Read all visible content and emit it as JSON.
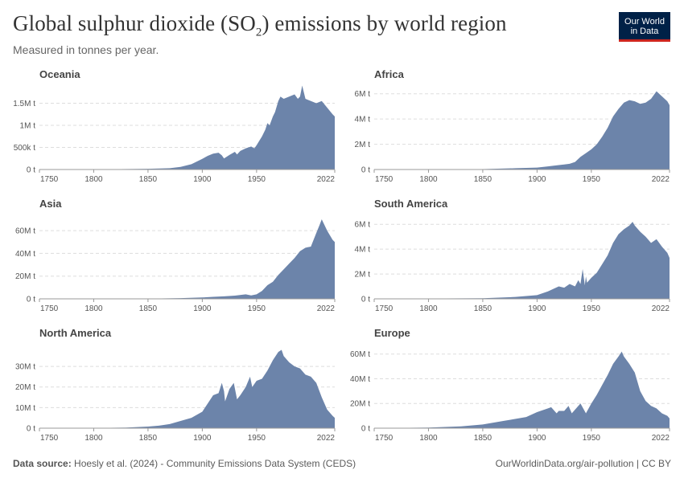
{
  "header": {
    "title_main": "Global sulphur dioxide (SO",
    "title_sub": "2",
    "title_end": ") emissions by world region",
    "subtitle": "Measured in tonnes per year.",
    "logo_line1": "Our World",
    "logo_line2": "in Data"
  },
  "footer": {
    "source_label": "Data source:",
    "source_text": "Hoesly et al. (2024) - Community Emissions Data System (CEDS)",
    "credit": "OurWorldinData.org/air-pollution | CC BY"
  },
  "colors": {
    "area": "#6c84aa",
    "grid": "#dddddd",
    "axis": "#999999",
    "text": "#555555"
  },
  "chart_data": [
    {
      "type": "area",
      "title": "Oceania",
      "xlabel": "",
      "ylabel": "",
      "xlim": [
        1750,
        2022
      ],
      "ylim": [
        0,
        1800000
      ],
      "xticks": [
        1750,
        1800,
        1850,
        1900,
        1950,
        2022
      ],
      "yticks": [
        0,
        500000,
        1000000,
        1500000
      ],
      "ytick_labels": [
        "0 t",
        "500k t",
        "1M t",
        "1.5M t"
      ],
      "x": [
        1750,
        1800,
        1850,
        1870,
        1880,
        1890,
        1900,
        1905,
        1910,
        1915,
        1918,
        1920,
        1925,
        1930,
        1932,
        1935,
        1940,
        1945,
        1948,
        1950,
        1955,
        1958,
        1960,
        1962,
        1965,
        1967,
        1970,
        1972,
        1975,
        1980,
        1985,
        1988,
        1990,
        1992,
        1995,
        2000,
        2005,
        2010,
        2015,
        2020,
        2022
      ],
      "values": [
        0,
        2000,
        15000,
        30000,
        60000,
        120000,
        240000,
        310000,
        360000,
        380000,
        320000,
        250000,
        330000,
        400000,
        340000,
        420000,
        480000,
        520000,
        480000,
        550000,
        750000,
        900000,
        1050000,
        1000000,
        1200000,
        1300000,
        1550000,
        1650000,
        1600000,
        1650000,
        1700000,
        1600000,
        1650000,
        1900000,
        1600000,
        1550000,
        1500000,
        1550000,
        1400000,
        1250000,
        1200000
      ]
    },
    {
      "type": "area",
      "title": "Africa",
      "xlabel": "",
      "ylabel": "",
      "xlim": [
        1750,
        2022
      ],
      "ylim": [
        0,
        6300000
      ],
      "xticks": [
        1750,
        1800,
        1850,
        1900,
        1950,
        2022
      ],
      "yticks": [
        0,
        2000000,
        4000000,
        6000000
      ],
      "ytick_labels": [
        "0 t",
        "2M t",
        "4M t",
        "6M t"
      ],
      "x": [
        1750,
        1850,
        1880,
        1900,
        1910,
        1920,
        1925,
        1930,
        1935,
        1940,
        1945,
        1950,
        1955,
        1960,
        1965,
        1970,
        1975,
        1980,
        1985,
        1990,
        1995,
        2000,
        2005,
        2010,
        2015,
        2020,
        2022
      ],
      "values": [
        0,
        30000,
        100000,
        150000,
        250000,
        350000,
        400000,
        450000,
        600000,
        1000000,
        1300000,
        1600000,
        2000000,
        2600000,
        3300000,
        4200000,
        4800000,
        5300000,
        5500000,
        5400000,
        5200000,
        5300000,
        5600000,
        6200000,
        5800000,
        5400000,
        5100000
      ]
    },
    {
      "type": "area",
      "title": "Asia",
      "xlabel": "",
      "ylabel": "",
      "xlim": [
        1750,
        2022
      ],
      "ylim": [
        0,
        70000000
      ],
      "xticks": [
        1750,
        1800,
        1850,
        1900,
        1950,
        2022
      ],
      "yticks": [
        0,
        20000000,
        40000000,
        60000000
      ],
      "ytick_labels": [
        "0 t",
        "20M t",
        "40M t",
        "60M t"
      ],
      "x": [
        1750,
        1850,
        1880,
        1900,
        1910,
        1920,
        1930,
        1940,
        1945,
        1950,
        1955,
        1960,
        1965,
        1970,
        1975,
        1980,
        1985,
        1990,
        1995,
        2000,
        2005,
        2008,
        2010,
        2012,
        2015,
        2020,
        2022
      ],
      "values": [
        0,
        200000,
        600000,
        1200000,
        1800000,
        2200000,
        2800000,
        4000000,
        3000000,
        4000000,
        7000000,
        12000000,
        15000000,
        21000000,
        26000000,
        31000000,
        36000000,
        42000000,
        45000000,
        46000000,
        58000000,
        65000000,
        70000000,
        66000000,
        60000000,
        52000000,
        50000000
      ]
    },
    {
      "type": "area",
      "title": "South America",
      "xlabel": "",
      "ylabel": "",
      "xlim": [
        1750,
        2022
      ],
      "ylim": [
        0,
        6400000
      ],
      "xticks": [
        1750,
        1800,
        1850,
        1900,
        1950,
        2022
      ],
      "yticks": [
        0,
        2000000,
        4000000,
        6000000
      ],
      "ytick_labels": [
        "0 t",
        "2M t",
        "4M t",
        "6M t"
      ],
      "x": [
        1750,
        1850,
        1880,
        1900,
        1910,
        1915,
        1920,
        1925,
        1930,
        1935,
        1938,
        1940,
        1942,
        1944,
        1945,
        1946,
        1950,
        1955,
        1960,
        1965,
        1970,
        1975,
        1980,
        1985,
        1988,
        1990,
        1995,
        2000,
        2005,
        2010,
        2015,
        2020,
        2022
      ],
      "values": [
        0,
        50000,
        150000,
        300000,
        600000,
        800000,
        1000000,
        900000,
        1200000,
        1000000,
        1500000,
        1200000,
        2400000,
        1100000,
        1800000,
        1300000,
        1700000,
        2100000,
        2800000,
        3500000,
        4500000,
        5200000,
        5600000,
        5900000,
        6200000,
        5900000,
        5400000,
        5000000,
        4500000,
        4800000,
        4200000,
        3700000,
        3300000
      ]
    },
    {
      "type": "area",
      "title": "North America",
      "xlabel": "",
      "ylabel": "",
      "xlim": [
        1750,
        2022
      ],
      "ylim": [
        0,
        39000000
      ],
      "xticks": [
        1750,
        1800,
        1850,
        1900,
        1950,
        2022
      ],
      "yticks": [
        0,
        10000000,
        20000000,
        30000000
      ],
      "ytick_labels": [
        "0 t",
        "10M t",
        "20M t",
        "30M t"
      ],
      "x": [
        1750,
        1800,
        1830,
        1850,
        1860,
        1870,
        1880,
        1890,
        1900,
        1905,
        1910,
        1915,
        1918,
        1920,
        1921,
        1925,
        1929,
        1932,
        1935,
        1940,
        1944,
        1946,
        1950,
        1955,
        1960,
        1965,
        1970,
        1973,
        1975,
        1980,
        1985,
        1990,
        1995,
        2000,
        2005,
        2010,
        2015,
        2020,
        2022
      ],
      "values": [
        0,
        100000,
        300000,
        800000,
        1200000,
        2000000,
        3500000,
        5000000,
        8000000,
        12000000,
        16000000,
        17000000,
        22000000,
        18000000,
        13000000,
        19000000,
        22000000,
        14000000,
        16000000,
        20000000,
        25000000,
        20000000,
        23000000,
        24000000,
        28000000,
        33000000,
        37000000,
        38000000,
        35000000,
        32000000,
        30000000,
        29000000,
        26000000,
        25000000,
        22000000,
        15000000,
        9000000,
        6000000,
        5000000
      ]
    },
    {
      "type": "area",
      "title": "Europe",
      "xlabel": "",
      "ylabel": "",
      "xlim": [
        1750,
        2022
      ],
      "ylim": [
        0,
        65000000
      ],
      "xticks": [
        1750,
        1800,
        1850,
        1900,
        1950,
        2022
      ],
      "yticks": [
        0,
        20000000,
        40000000,
        60000000
      ],
      "ytick_labels": [
        "0 t",
        "20M t",
        "40M t",
        "60M t"
      ],
      "x": [
        1750,
        1800,
        1830,
        1850,
        1870,
        1890,
        1900,
        1910,
        1913,
        1918,
        1920,
        1925,
        1929,
        1932,
        1935,
        1938,
        1940,
        1945,
        1950,
        1955,
        1960,
        1965,
        1970,
        1975,
        1978,
        1980,
        1985,
        1990,
        1995,
        2000,
        2005,
        2010,
        2015,
        2020,
        2022
      ],
      "values": [
        0,
        500000,
        1500000,
        3000000,
        6000000,
        9000000,
        13000000,
        16000000,
        17000000,
        12000000,
        14000000,
        14000000,
        18000000,
        12000000,
        15000000,
        18000000,
        20000000,
        12000000,
        20000000,
        27000000,
        35000000,
        43000000,
        52000000,
        58000000,
        62000000,
        58000000,
        52000000,
        45000000,
        30000000,
        22000000,
        18000000,
        16000000,
        12000000,
        10000000,
        8000000
      ]
    }
  ]
}
